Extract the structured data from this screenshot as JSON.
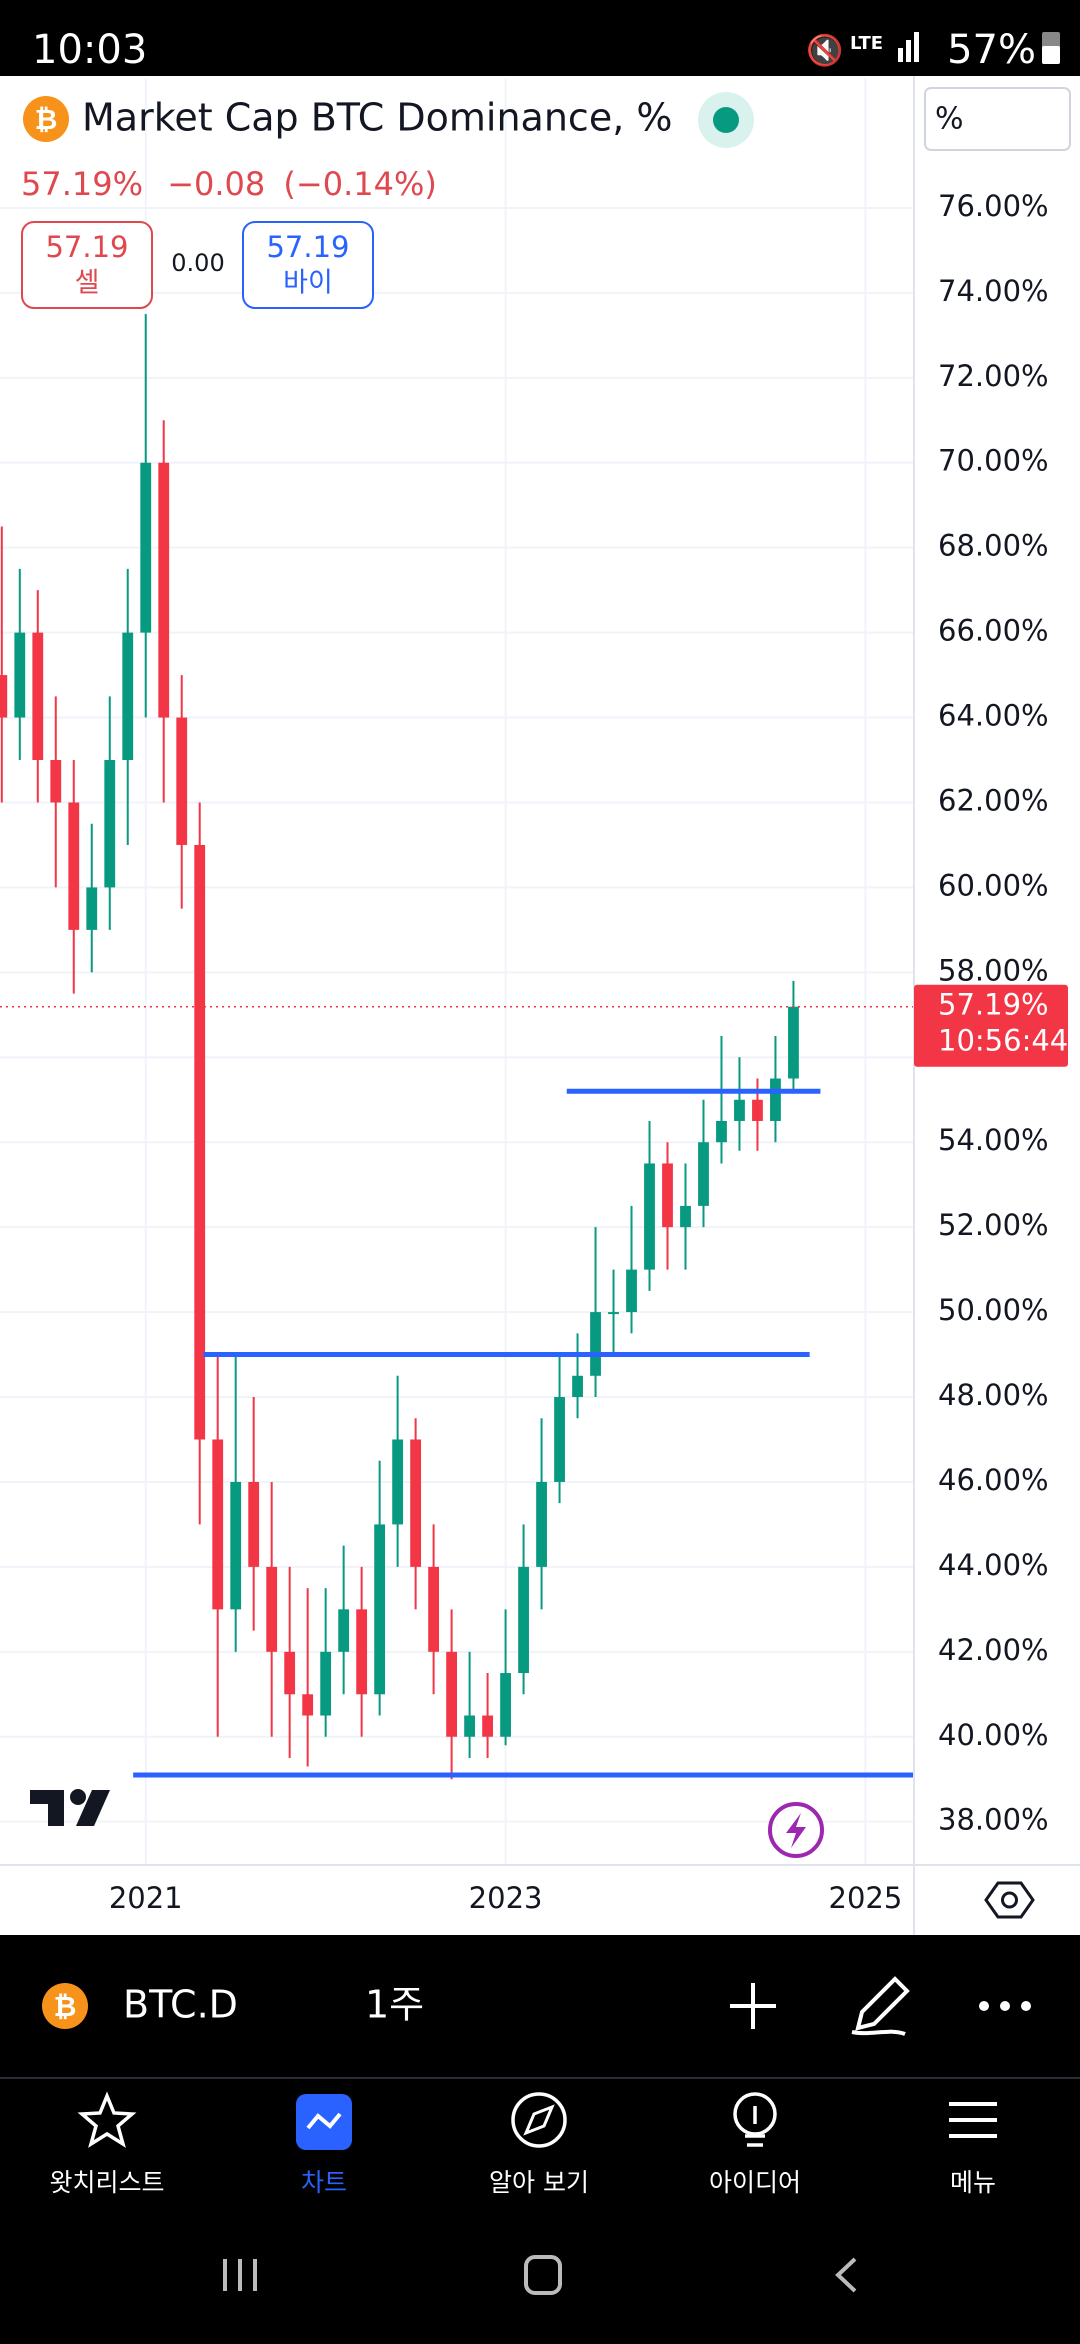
{
  "status_bar": {
    "time": "10:03",
    "battery": "57%"
  },
  "header": {
    "title": "Market Cap BTC Dominance, %",
    "price": "57.19%",
    "change": "−0.08",
    "change_percent": "(−0.14%)",
    "scale_button": "%",
    "sell": {
      "price": "57.19",
      "label": "셀"
    },
    "spread": "0.00",
    "buy": {
      "price": "57.19",
      "label": "바이"
    }
  },
  "chart_data": {
    "type": "candlestick",
    "up_color": "#089981",
    "down_color": "#f23645",
    "x": [
      2020.2,
      2020.3,
      2020.4,
      2020.5,
      2020.6,
      2020.7,
      2020.8,
      2020.9,
      2021.0,
      2021.1,
      2021.2,
      2021.3,
      2021.4,
      2021.5,
      2021.6,
      2021.7,
      2021.8,
      2021.9,
      2022.0,
      2022.1,
      2022.2,
      2022.3,
      2022.4,
      2022.5,
      2022.6,
      2022.7,
      2022.8,
      2022.9,
      2023.0,
      2023.1,
      2023.2,
      2023.3,
      2023.4,
      2023.5,
      2023.6,
      2023.7,
      2023.8,
      2023.9,
      2024.0,
      2024.1,
      2024.2,
      2024.3,
      2024.4,
      2024.5,
      2024.6
    ],
    "open": [
      65,
      64,
      66,
      63,
      62,
      59,
      60,
      63,
      66,
      70,
      64,
      61,
      47,
      43,
      46,
      44,
      42,
      41,
      40.5,
      42,
      43,
      41,
      45,
      47,
      44,
      42,
      40,
      40.5,
      40,
      41.5,
      44,
      46,
      48,
      48.5,
      50,
      50,
      51,
      53.5,
      52,
      52.5,
      54,
      54.5,
      55,
      54.5,
      55.5
    ],
    "high": [
      68.5,
      67.5,
      67,
      64.5,
      63,
      61.5,
      64.5,
      67.5,
      73.5,
      71,
      65,
      62,
      49,
      49,
      48,
      46,
      44,
      43.5,
      43.5,
      44.5,
      44,
      46.5,
      48.5,
      47.5,
      45,
      43,
      42,
      41.5,
      43,
      45,
      47.5,
      49,
      49.5,
      52,
      51,
      52.5,
      54.5,
      54,
      53.5,
      55,
      56.5,
      56,
      55.5,
      56.5,
      57.8
    ],
    "low": [
      62,
      63,
      62,
      60,
      57.5,
      58,
      59,
      61,
      64,
      62,
      59.5,
      45,
      40,
      42,
      42.5,
      40,
      39.5,
      39.3,
      40,
      41,
      40,
      40.5,
      44,
      43,
      41,
      39,
      39.5,
      39.5,
      39.8,
      41,
      43,
      45.5,
      47.5,
      48,
      49,
      49.5,
      50.5,
      51,
      51,
      52,
      53.5,
      53.8,
      53.8,
      54,
      55.2
    ],
    "close": [
      64,
      66,
      63,
      62,
      59,
      60,
      63,
      66,
      70,
      64,
      61,
      47,
      43,
      46,
      44,
      42,
      41,
      40.5,
      42,
      43,
      41,
      45,
      47,
      44,
      42,
      40,
      40.5,
      40,
      41.5,
      44,
      46,
      48,
      48.5,
      50,
      50,
      51,
      53.5,
      52,
      52.5,
      54,
      54.5,
      55,
      54.5,
      55.5,
      57.19
    ],
    "xlim": [
      2020.19,
      2025.27
    ],
    "ylim": [
      36.98,
      79.06
    ],
    "xticks": [
      2021,
      2023,
      2025
    ],
    "yticks": [
      {
        "value": 38,
        "label": "38.00%"
      },
      {
        "value": 40,
        "label": "40.00%"
      },
      {
        "value": 42,
        "label": "42.00%"
      },
      {
        "value": 44,
        "label": "44.00%"
      },
      {
        "value": 46,
        "label": "46.00%"
      },
      {
        "value": 48,
        "label": "48.00%"
      },
      {
        "value": 50,
        "label": "50.00%"
      },
      {
        "value": 52,
        "label": "52.00%"
      },
      {
        "value": 54,
        "label": "54.00%"
      },
      {
        "value": 56,
        "label": "56.00%"
      },
      {
        "value": 58,
        "label": "58.00%"
      },
      {
        "value": 60,
        "label": "60.00%"
      },
      {
        "value": 62,
        "label": "62.00%"
      },
      {
        "value": 64,
        "label": "64.00%"
      },
      {
        "value": 66,
        "label": "66.00%"
      },
      {
        "value": 68,
        "label": "68.00%"
      },
      {
        "value": 70,
        "label": "70.00%"
      },
      {
        "value": 72,
        "label": "72.00%"
      },
      {
        "value": 74,
        "label": "74.00%"
      },
      {
        "value": 76,
        "label": "76.00%"
      }
    ],
    "grid": true,
    "last_price": {
      "value": 57.19,
      "label": "57.19%",
      "countdown": "10:56:44",
      "color": "#f23645"
    },
    "drawings": {
      "color": "#2962ff",
      "lines": [
        {
          "y": 55.2,
          "x": [
            2023.34,
            2024.75
          ]
        },
        {
          "y": 49.0,
          "x": [
            2021.32,
            2024.69
          ]
        },
        {
          "y": 39.1,
          "x": [
            2020.93,
            2025.27
          ]
        }
      ]
    }
  },
  "toolbar": {
    "symbol": "BTC.D",
    "interval": "1주"
  },
  "nav": [
    {
      "label": "왓치리스트"
    },
    {
      "label": "차트"
    },
    {
      "label": "알아 보기"
    },
    {
      "label": "아이디어"
    },
    {
      "label": "메뉴"
    }
  ]
}
